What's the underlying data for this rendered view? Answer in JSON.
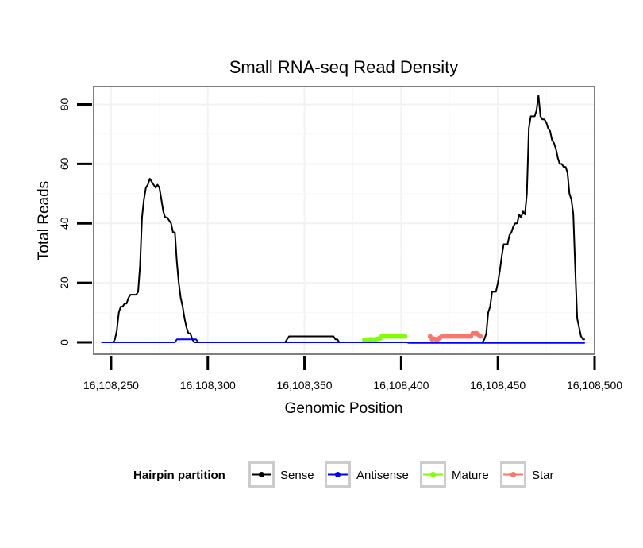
{
  "chart_data": {
    "type": "line",
    "title": "Small RNA-seq Read Density",
    "xlabel": "Genomic Position",
    "ylabel": "Total Reads",
    "xlim": [
      16108241,
      16108500
    ],
    "ylim": [
      -4,
      86
    ],
    "x_ticks": [
      16108250,
      16108300,
      16108350,
      16108400,
      16108450,
      16108500
    ],
    "x_tick_labels": [
      "16,108,250",
      "16,108,300",
      "16,108,350",
      "16,108,400",
      "16,108,450",
      "16,108,500"
    ],
    "y_ticks": [
      0,
      20,
      40,
      60,
      80
    ],
    "y_tick_labels": [
      "0",
      "20",
      "40",
      "60",
      "80"
    ],
    "grid": true,
    "legend": {
      "title": "Hairpin partition",
      "position": "bottom"
    },
    "series": [
      {
        "name": "Sense",
        "color": "#000000",
        "markers": false,
        "x": [
          16108245,
          16108251,
          16108252,
          16108253,
          16108254,
          16108255,
          16108256,
          16108257,
          16108258,
          16108259,
          16108260,
          16108261,
          16108262,
          16108263,
          16108264,
          16108265,
          16108266,
          16108267,
          16108268,
          16108269,
          16108270,
          16108271,
          16108272,
          16108273,
          16108274,
          16108275,
          16108276,
          16108277,
          16108278,
          16108279,
          16108280,
          16108281,
          16108282,
          16108283,
          16108284,
          16108285,
          16108286,
          16108287,
          16108288,
          16108289,
          16108290,
          16108291,
          16108292,
          16108293,
          16108294,
          16108295,
          16108296,
          16108297,
          16108298,
          16108340,
          16108341,
          16108342,
          16108365,
          16108366,
          16108367,
          16108368,
          16108441,
          16108442,
          16108443,
          16108444,
          16108445,
          16108446,
          16108447,
          16108448,
          16108449,
          16108450,
          16108451,
          16108452,
          16108453,
          16108454,
          16108455,
          16108456,
          16108457,
          16108458,
          16108459,
          16108460,
          16108461,
          16108462,
          16108463,
          16108464,
          16108465,
          16108466,
          16108467,
          16108468,
          16108469,
          16108470,
          16108471,
          16108472,
          16108473,
          16108474,
          16108475,
          16108476,
          16108477,
          16108478,
          16108479,
          16108480,
          16108481,
          16108482,
          16108483,
          16108484,
          16108485,
          16108486,
          16108487,
          16108488,
          16108489,
          16108490,
          16108491,
          16108492,
          16108493,
          16108494,
          16108495
        ],
        "y": [
          0,
          0,
          1,
          4,
          10,
          12,
          12,
          13,
          13,
          15,
          16,
          16,
          16,
          16,
          17,
          26,
          42,
          48,
          52,
          53,
          55,
          54,
          53,
          52,
          53,
          52,
          48,
          44,
          42,
          42,
          41,
          40,
          37,
          37,
          27,
          20,
          15,
          12,
          8,
          5,
          3,
          3,
          1,
          0,
          0,
          0,
          0,
          0,
          0,
          0,
          1,
          2,
          2,
          1,
          1,
          0,
          0,
          0,
          1,
          3,
          10,
          12,
          17,
          17,
          17,
          20,
          24,
          29,
          33,
          33,
          33,
          36,
          37,
          39,
          40,
          40,
          43,
          42,
          44,
          43,
          50,
          72,
          76,
          76,
          76,
          78,
          83,
          76,
          75,
          75,
          74,
          72,
          71,
          68,
          67,
          65,
          62,
          60,
          60,
          59,
          59,
          57,
          50,
          48,
          43,
          25,
          8,
          5,
          2,
          1,
          1
        ]
      },
      {
        "name": "Antisense",
        "color": "#0000ff",
        "markers": false,
        "x": [
          16108245,
          16108283,
          16108284,
          16108294,
          16108295,
          16108403,
          16108404,
          16108495
        ],
        "y": [
          0,
          0,
          1,
          1,
          0,
          0,
          -0.2,
          -0.2
        ]
      },
      {
        "name": "Mature",
        "color": "#7fff00",
        "markers": true,
        "x": [
          16108381,
          16108382,
          16108383,
          16108384,
          16108385,
          16108386,
          16108387,
          16108388,
          16108389,
          16108390,
          16108391,
          16108392,
          16108393,
          16108394,
          16108395,
          16108396,
          16108397,
          16108398,
          16108399,
          16108400,
          16108401,
          16108402
        ],
        "y": [
          0.8,
          0.9,
          0.8,
          1,
          1,
          0.9,
          1,
          1.2,
          1.3,
          2,
          2,
          2,
          2,
          2,
          2,
          2,
          2,
          2,
          2,
          2,
          2,
          2
        ]
      },
      {
        "name": "Star",
        "color": "#f8766d",
        "markers": true,
        "x": [
          16108415,
          16108416,
          16108417,
          16108418,
          16108419,
          16108420,
          16108421,
          16108422,
          16108423,
          16108424,
          16108425,
          16108426,
          16108427,
          16108428,
          16108429,
          16108430,
          16108431,
          16108432,
          16108433,
          16108434,
          16108435,
          16108436,
          16108437,
          16108438,
          16108439,
          16108440,
          16108441
        ],
        "y": [
          2,
          1,
          1.2,
          1,
          1,
          1.5,
          2,
          2,
          2,
          2,
          2,
          2,
          2,
          2,
          2,
          2,
          2,
          2,
          2,
          2,
          2,
          2,
          3,
          3,
          3,
          2.5,
          2
        ]
      }
    ]
  }
}
